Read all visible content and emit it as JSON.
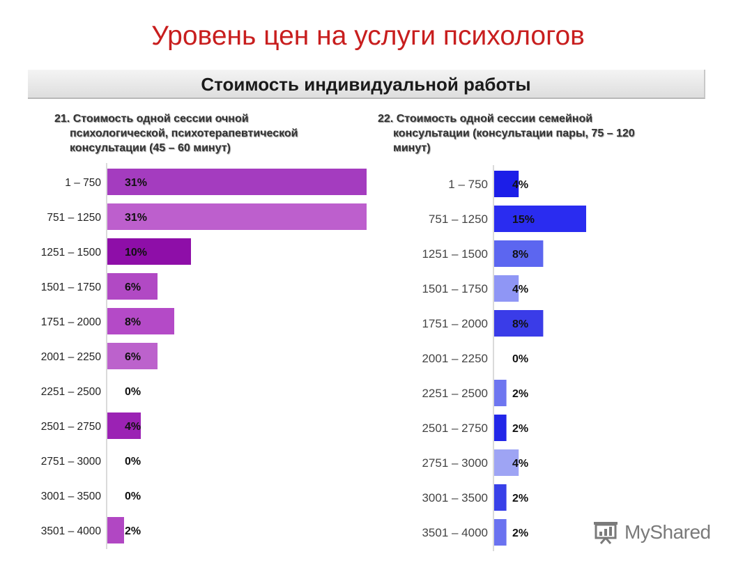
{
  "slide": {
    "title": "Уровень цен на услуги психологов",
    "banner": "Стоимость индивидуальной работы",
    "watermark": "MyShared"
  },
  "chart_data": [
    {
      "type": "bar",
      "orientation": "horizontal",
      "title_lines": [
        "21. Стоимость одной сессии очной",
        "психологической, психотерапевтической",
        "консультации (45 – 60 минут)"
      ],
      "categories": [
        "1 – 750",
        "751 – 1250",
        "1251 – 1500",
        "1501 – 1750",
        "1751 – 2000",
        "2001 – 2250",
        "2251 – 2500",
        "2501 – 2750",
        "2751 – 3000",
        "3001 – 3500",
        "3501 – 4000"
      ],
      "values": [
        31,
        31,
        10,
        6,
        8,
        6,
        0,
        4,
        0,
        0,
        2
      ],
      "labels": [
        "31%",
        "31%",
        "10%",
        "6%",
        "8%",
        "6%",
        "0%",
        "4%",
        "0%",
        "0%",
        "2%"
      ],
      "value_unit": "%",
      "xlim": [
        0,
        31
      ],
      "colors": [
        "#a43cbf",
        "#bd5fcd",
        "#8e0ea8",
        "#b149c4",
        "#b44ac7",
        "#bc62cc",
        "#a43cbf",
        "#9b22b4",
        "#a43cbf",
        "#a43cbf",
        "#b147c3"
      ],
      "grid": false
    },
    {
      "type": "bar",
      "orientation": "horizontal",
      "title_lines": [
        "22. Стоимость одной сессии семейной",
        "консультации (консультации пары, 75 – 120",
        "минут)"
      ],
      "categories": [
        "1 – 750",
        "751 – 1250",
        "1251 – 1500",
        "1501 – 1750",
        "1751 – 2000",
        "2001 – 2250",
        "2251 – 2500",
        "2501 – 2750",
        "2751 – 3000",
        "3001 – 3500",
        "3501 – 4000"
      ],
      "values": [
        4,
        15,
        8,
        4,
        8,
        0,
        2,
        2,
        4,
        2,
        2
      ],
      "labels": [
        "4%",
        "15%",
        "8%",
        "4%",
        "8%",
        "0%",
        "2%",
        "2%",
        "4%",
        "2%",
        "2%"
      ],
      "value_unit": "%",
      "xlim": [
        0,
        15
      ],
      "colors": [
        "#1c1ee8",
        "#2a2cf0",
        "#5c66f0",
        "#8f96f5",
        "#3a3ce8",
        "#2a2cf0",
        "#6e76f0",
        "#2226e8",
        "#9ea4f4",
        "#3840e8",
        "#6a72f0"
      ],
      "grid": false
    }
  ]
}
